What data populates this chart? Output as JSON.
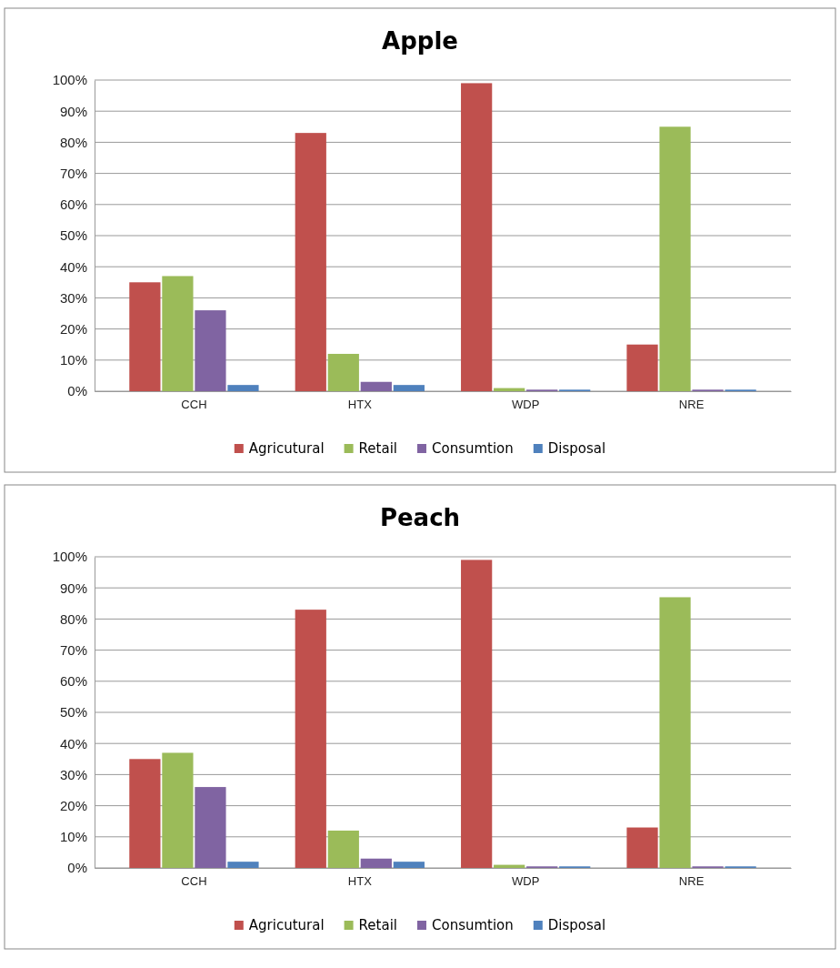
{
  "chart_data": [
    {
      "type": "bar",
      "title": "Apple",
      "categories": [
        "CCH",
        "HTX",
        "WDP",
        "NRE"
      ],
      "series": [
        {
          "name": "Agricutural",
          "color": "#c0504d",
          "values": [
            35,
            83,
            99,
            15
          ]
        },
        {
          "name": "Retail",
          "color": "#9bbb59",
          "values": [
            37,
            12,
            1,
            85
          ]
        },
        {
          "name": "Consumtion",
          "color": "#8064a2",
          "values": [
            26,
            3,
            0.5,
            0.5
          ]
        },
        {
          "name": "Disposal",
          "color": "#4f81bd",
          "values": [
            2,
            2,
            0.5,
            0.5
          ]
        }
      ],
      "ylim": [
        0,
        100
      ],
      "yticks": [
        {
          "value": 0,
          "label": "0%"
        },
        {
          "value": 10,
          "label": "10%"
        },
        {
          "value": 20,
          "label": "20%"
        },
        {
          "value": 30,
          "label": "30%"
        },
        {
          "value": 40,
          "label": "40%"
        },
        {
          "value": 50,
          "label": "50%"
        },
        {
          "value": 60,
          "label": "60%"
        },
        {
          "value": 70,
          "label": "70%"
        },
        {
          "value": 80,
          "label": "80%"
        },
        {
          "value": 90,
          "label": "90%"
        },
        {
          "value": 100,
          "label": "100%"
        }
      ],
      "grid": "y",
      "legend": "bottom"
    },
    {
      "type": "bar",
      "title": "Peach",
      "categories": [
        "CCH",
        "HTX",
        "WDP",
        "NRE"
      ],
      "series": [
        {
          "name": "Agricutural",
          "color": "#c0504d",
          "values": [
            35,
            83,
            99,
            13
          ]
        },
        {
          "name": "Retail",
          "color": "#9bbb59",
          "values": [
            37,
            12,
            1,
            87
          ]
        },
        {
          "name": "Consumtion",
          "color": "#8064a2",
          "values": [
            26,
            3,
            0.5,
            0.5
          ]
        },
        {
          "name": "Disposal",
          "color": "#4f81bd",
          "values": [
            2,
            2,
            0.5,
            0.5
          ]
        }
      ],
      "ylim": [
        0,
        100
      ],
      "yticks": [
        {
          "value": 0,
          "label": "0%"
        },
        {
          "value": 10,
          "label": "10%"
        },
        {
          "value": 20,
          "label": "20%"
        },
        {
          "value": 30,
          "label": "30%"
        },
        {
          "value": 40,
          "label": "40%"
        },
        {
          "value": 50,
          "label": "50%"
        },
        {
          "value": 60,
          "label": "60%"
        },
        {
          "value": 70,
          "label": "70%"
        },
        {
          "value": 80,
          "label": "80%"
        },
        {
          "value": 90,
          "label": "90%"
        },
        {
          "value": 100,
          "label": "100%"
        }
      ],
      "grid": "y",
      "legend": "bottom"
    }
  ]
}
